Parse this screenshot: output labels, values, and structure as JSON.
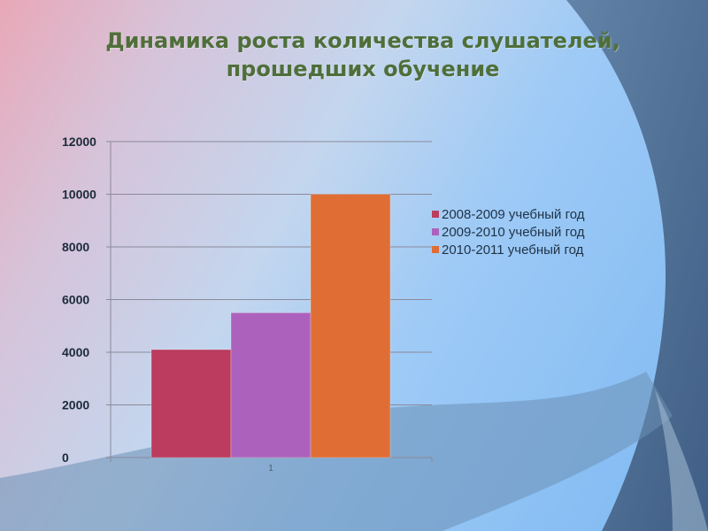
{
  "title_line1": "Динамика роста количества слушателей,",
  "title_line2": "прошедших обучение",
  "chart_data": {
    "type": "bar",
    "categories": [
      "1"
    ],
    "series": [
      {
        "name": "2008-2009 учебный год",
        "values": [
          4100
        ],
        "color": "#bb3c5e"
      },
      {
        "name": "2009-2010 учебный год",
        "values": [
          5500
        ],
        "color": "#ac62bd"
      },
      {
        "name": "2010-2011 учебный год",
        "values": [
          10000
        ],
        "color": "#e06e34"
      }
    ],
    "ylim": [
      0,
      12000
    ],
    "yticks": [
      "0",
      "2000",
      "4000",
      "6000",
      "8000",
      "10000",
      "12000"
    ],
    "grid": true,
    "legend": "right"
  }
}
